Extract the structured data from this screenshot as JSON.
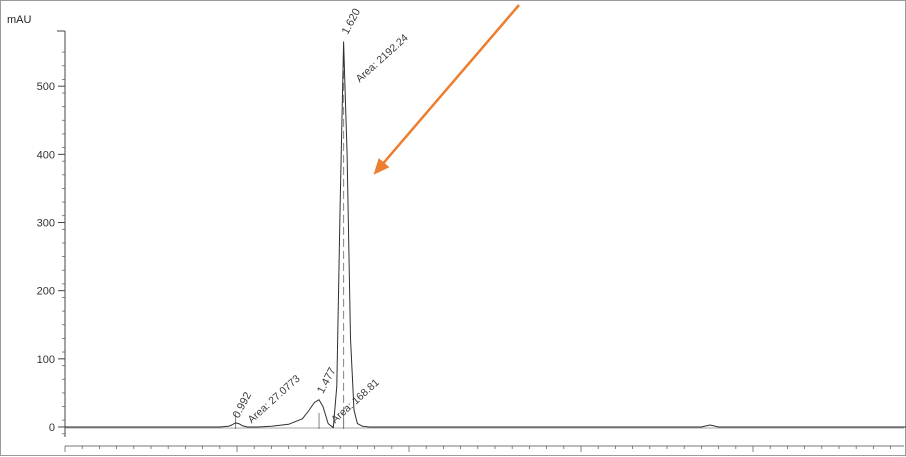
{
  "chart_data": {
    "type": "line",
    "title": "",
    "xlabel": "",
    "ylabel": "mAU",
    "ylim": [
      -10,
      560
    ],
    "yticks": [
      0,
      100,
      200,
      300,
      400,
      500
    ],
    "xlim": [
      0,
      4.9
    ],
    "grid": false,
    "series": [
      {
        "x": [
          0.0,
          0.9,
          0.95,
          0.97,
          0.99,
          1.01,
          1.03,
          1.06,
          1.12,
          1.2,
          1.3,
          1.38,
          1.42,
          1.45,
          1.477,
          1.5,
          1.53,
          1.56,
          1.58,
          1.6,
          1.62,
          1.64,
          1.66,
          1.68,
          1.7,
          1.73,
          1.77,
          1.85,
          2.0,
          3.0,
          3.7,
          3.75,
          3.8,
          4.0,
          4.9
        ],
        "values": [
          0,
          0,
          1,
          3,
          6,
          5,
          2,
          0,
          0,
          1,
          4,
          12,
          25,
          36,
          40,
          30,
          5,
          -1,
          60,
          330,
          565,
          400,
          130,
          25,
          5,
          1,
          0,
          0,
          0,
          0,
          0,
          3,
          0,
          0,
          0
        ]
      }
    ],
    "peaks": [
      {
        "rt": 0.992,
        "label": "0.992",
        "area_label": "Area: 27.0773"
      },
      {
        "rt": 1.477,
        "label": "1.477",
        "area_label": "Area: 168.81"
      },
      {
        "rt": 1.62,
        "label": "1.620",
        "area_label": "Area: 2192.24"
      }
    ],
    "annotations": [
      {
        "type": "arrow",
        "color": "#ed7d31",
        "target_rt": 1.62
      }
    ]
  }
}
